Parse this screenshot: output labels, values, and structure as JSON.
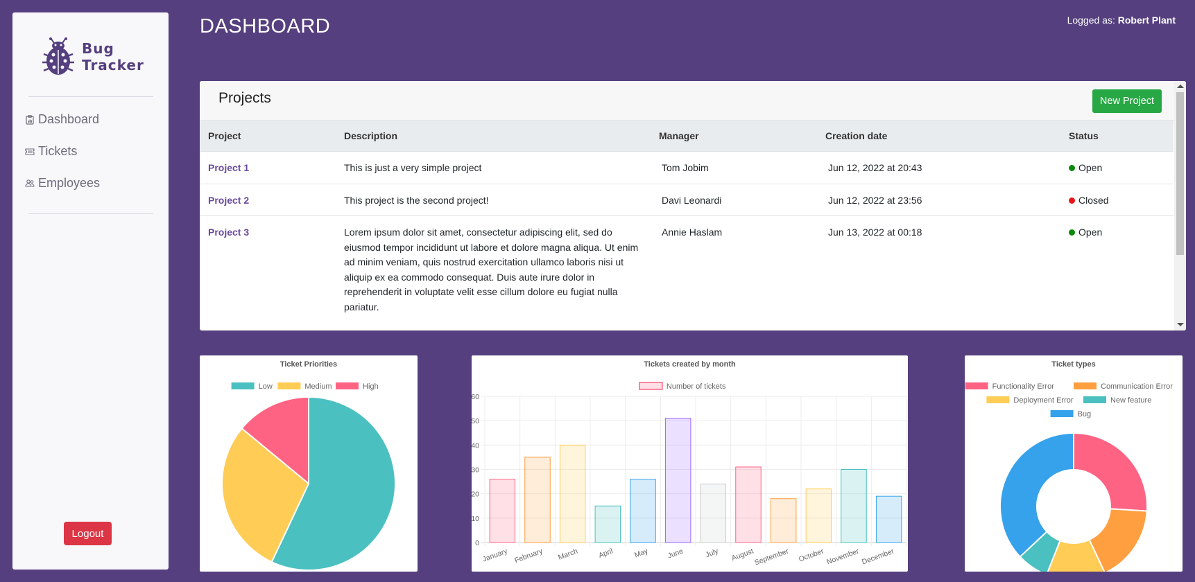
{
  "app": {
    "name_line1": "Bug",
    "name_line2": "Tracker"
  },
  "sidebar": {
    "items": [
      {
        "label": "Dashboard",
        "icon": "clipboard-icon"
      },
      {
        "label": "Tickets",
        "icon": "ticket-icon"
      },
      {
        "label": "Employees",
        "icon": "people-icon"
      }
    ],
    "logout_label": "Logout"
  },
  "header": {
    "title": "DASHBOARD",
    "logged_prefix": "Logged as:",
    "user": "Robert Plant"
  },
  "projects": {
    "title": "Projects",
    "new_button": "New Project",
    "columns": [
      "Project",
      "Description",
      "Manager",
      "Creation date",
      "Status"
    ],
    "rows": [
      {
        "name": "Project 1",
        "description": "This is just a very simple project",
        "manager": "Tom Jobim",
        "date": "Jun 12, 2022 at 20:43",
        "status": "Open",
        "status_color": "#0a8a0a"
      },
      {
        "name": "Project 2",
        "description": "This project is the second project!",
        "manager": "Davi Leonardi",
        "date": "Jun 12, 2022 at 23:56",
        "status": "Closed",
        "status_color": "#e8161b"
      },
      {
        "name": "Project 3",
        "description": "Lorem ipsum dolor sit amet, consectetur adipiscing elit, sed do eiusmod tempor incididunt ut labore et dolore magna aliqua. Ut enim ad minim veniam, quis nostrud exercitation ullamco laboris nisi ut aliquip ex ea commodo consequat. Duis aute irure dolor in reprehenderit in voluptate velit esse cillum dolore eu fugiat nulla pariatur.",
        "manager": "Annie Haslam",
        "date": "Jun 13, 2022 at 00:18",
        "status": "Open",
        "status_color": "#0a8a0a"
      }
    ]
  },
  "chart_data": [
    {
      "type": "pie",
      "title": "Ticket Priorities",
      "categories": [
        "Low",
        "Medium",
        "High"
      ],
      "values": [
        57,
        29,
        14
      ],
      "colors": [
        "#4bc0c0",
        "#ffcd56",
        "#ff6384"
      ],
      "legend": "top"
    },
    {
      "type": "bar",
      "title": "Tickets created by month",
      "series_name": "Number of tickets",
      "categories": [
        "January",
        "February",
        "March",
        "April",
        "May",
        "June",
        "July",
        "August",
        "September",
        "October",
        "November",
        "December"
      ],
      "values": [
        26,
        35,
        40,
        15,
        26,
        51,
        24,
        31,
        18,
        22,
        30,
        19
      ],
      "ylim": [
        0,
        60
      ],
      "yticks": [
        0,
        10,
        20,
        30,
        40,
        50,
        60
      ],
      "colors": [
        "#ff6384",
        "#ff9f40",
        "#ffcd56",
        "#4bc0c0",
        "#36a2eb",
        "#9966ff",
        "#c9cbcf",
        "#ff6384",
        "#ff9f40",
        "#ffcd56",
        "#4bc0c0",
        "#36a2eb"
      ],
      "legend": "top",
      "grid": true
    },
    {
      "type": "doughnut",
      "title": "Ticket types",
      "categories": [
        "Functionality Error",
        "Communication Error",
        "Deployment Error",
        "New feature",
        "Bug"
      ],
      "values": [
        26,
        17,
        13,
        7,
        37
      ],
      "colors": [
        "#ff6384",
        "#ff9f40",
        "#ffcd56",
        "#4bc0c0",
        "#36a2eb"
      ],
      "legend": "top"
    }
  ]
}
